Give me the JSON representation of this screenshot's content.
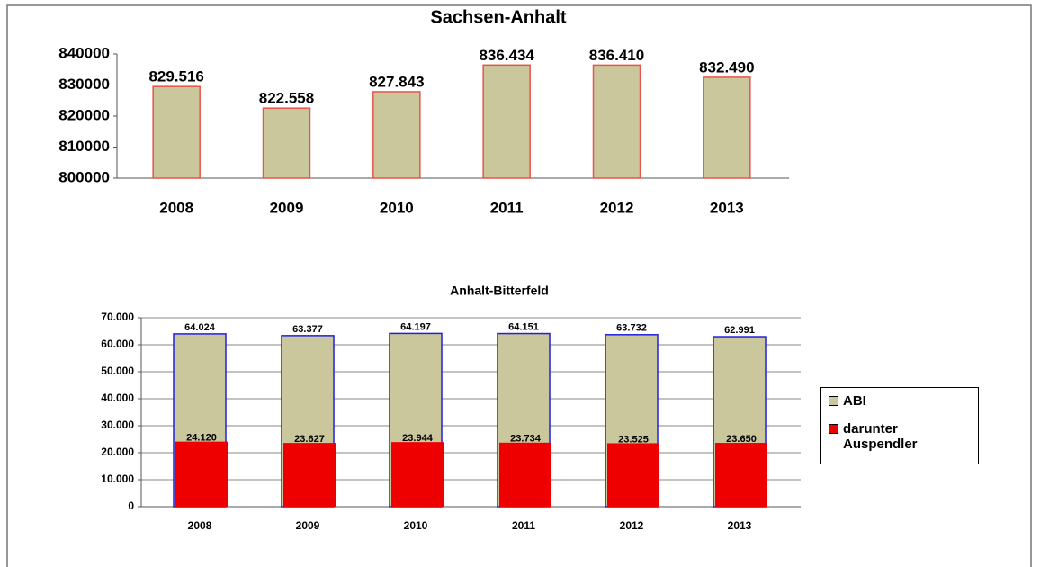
{
  "chart_data": [
    {
      "type": "bar",
      "title": "Sachsen-Anhalt",
      "categories": [
        "2008",
        "2009",
        "2010",
        "2011",
        "2012",
        "2013"
      ],
      "values": [
        829516,
        822558,
        827843,
        836434,
        836410,
        832490
      ],
      "value_labels": [
        "829.516",
        "822.558",
        "827.843",
        "836.434",
        "836.410",
        "832.490"
      ],
      "color": "#cbc79c",
      "edge_color": "#e8534a",
      "ylim": [
        800000,
        840000
      ],
      "yticks": [
        800000,
        810000,
        820000,
        830000,
        840000
      ],
      "grid": false
    },
    {
      "type": "bar",
      "title": "Anhalt-Bitterfeld",
      "categories": [
        "2008",
        "2009",
        "2010",
        "2011",
        "2012",
        "2013"
      ],
      "series": [
        {
          "name": "ABI",
          "color": "#cbc79c",
          "edge_color": "#1f1fe0",
          "values": [
            64024,
            63377,
            64197,
            64151,
            63732,
            62991
          ],
          "value_labels": [
            "64.024",
            "63.377",
            "64.197",
            "64.151",
            "63.732",
            "62.991"
          ]
        },
        {
          "name": "darunter Auspendler",
          "color": "#ee0000",
          "values": [
            24120,
            23627,
            23944,
            23734,
            23525,
            23650
          ],
          "value_labels": [
            "24.120",
            "23.627",
            "23.944",
            "23.734",
            "23.525",
            "23.650"
          ]
        }
      ],
      "ylim": [
        0,
        70000
      ],
      "yticks": [
        0,
        {
          "value": 10000,
          "label": "10.000"
        },
        {
          "value": 20000,
          "label": "20.000"
        },
        {
          "value": 30000,
          "label": "30.000"
        },
        {
          "value": 40000,
          "label": "40.000"
        },
        {
          "value": 50000,
          "label": "50.000"
        },
        {
          "value": 60000,
          "label": "60.000"
        },
        {
          "value": 70000,
          "label": "70.000"
        }
      ],
      "grid": true,
      "legend": "right"
    }
  ]
}
